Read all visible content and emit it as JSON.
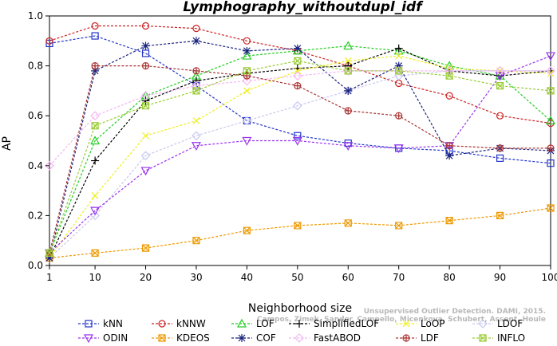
{
  "chart_data": {
    "type": "line",
    "title": "Lymphography_withoutdupl_idf",
    "xlabel": "Neighborhood size",
    "ylabel": "AP",
    "xlim": [
      1,
      100
    ],
    "ylim": [
      0,
      1.0
    ],
    "xticks": [
      1,
      10,
      20,
      30,
      40,
      50,
      60,
      70,
      80,
      90,
      100
    ],
    "yticks": [
      0.0,
      0.2,
      0.4,
      0.6,
      0.8,
      1.0
    ],
    "x": [
      1,
      10,
      20,
      30,
      40,
      50,
      60,
      70,
      80,
      90,
      100
    ],
    "legend_placement": "bottom",
    "series": [
      {
        "name": "kNN",
        "color": "#2233cc",
        "marker": "square",
        "values": [
          0.89,
          0.92,
          0.85,
          0.72,
          0.58,
          0.52,
          0.49,
          0.47,
          0.46,
          0.43,
          0.41
        ]
      },
      {
        "name": "kNNW",
        "color": "#cc2222",
        "marker": "circle",
        "values": [
          0.9,
          0.96,
          0.96,
          0.95,
          0.9,
          0.86,
          0.8,
          0.73,
          0.68,
          0.6,
          0.57
        ]
      },
      {
        "name": "LOF",
        "color": "#22cc22",
        "marker": "triangle-up",
        "values": [
          0.05,
          0.5,
          0.68,
          0.76,
          0.84,
          0.86,
          0.88,
          0.86,
          0.8,
          0.76,
          0.58
        ]
      },
      {
        "name": "SimplifiedLOF",
        "color": "#000000",
        "marker": "plus",
        "values": [
          0.03,
          0.42,
          0.66,
          0.74,
          0.77,
          0.79,
          0.8,
          0.87,
          0.78,
          0.76,
          0.78
        ]
      },
      {
        "name": "LoOP",
        "color": "#eeee22",
        "marker": "x",
        "values": [
          0.03,
          0.28,
          0.52,
          0.58,
          0.7,
          0.78,
          0.82,
          0.84,
          0.79,
          0.78,
          0.77
        ]
      },
      {
        "name": "LDOF",
        "color": "#c8c8f0",
        "marker": "diamond",
        "values": [
          0.03,
          0.2,
          0.44,
          0.52,
          0.58,
          0.64,
          0.7,
          0.76,
          0.78,
          0.78,
          0.78
        ]
      },
      {
        "name": "ODIN",
        "color": "#9933ee",
        "marker": "triangle-down",
        "values": [
          0.05,
          0.22,
          0.38,
          0.48,
          0.5,
          0.5,
          0.48,
          0.47,
          0.48,
          0.76,
          0.84
        ]
      },
      {
        "name": "KDEOS",
        "color": "#ee9900",
        "marker": "square-x",
        "values": [
          0.03,
          0.05,
          0.07,
          0.1,
          0.14,
          0.16,
          0.17,
          0.16,
          0.18,
          0.2,
          0.23
        ]
      },
      {
        "name": "COF",
        "color": "#1a237e",
        "marker": "asterisk",
        "values": [
          0.03,
          0.78,
          0.88,
          0.9,
          0.86,
          0.87,
          0.7,
          0.8,
          0.44,
          0.47,
          0.46
        ]
      },
      {
        "name": "FastABOD",
        "color": "#f4b6f4",
        "marker": "diamond",
        "values": [
          0.4,
          0.6,
          0.68,
          0.72,
          0.74,
          0.76,
          0.78,
          0.78,
          0.78,
          0.78,
          0.78
        ]
      },
      {
        "name": "LDF",
        "color": "#aa3333",
        "marker": "circle-plus",
        "values": [
          0.05,
          0.8,
          0.8,
          0.78,
          0.76,
          0.72,
          0.62,
          0.6,
          0.48,
          0.47,
          0.47
        ]
      },
      {
        "name": "INFLO",
        "color": "#99cc33",
        "marker": "square-x",
        "values": [
          0.05,
          0.56,
          0.64,
          0.7,
          0.78,
          0.82,
          0.78,
          0.78,
          0.76,
          0.72,
          0.7
        ]
      }
    ]
  },
  "watermark": "Unsupervised Outlier Detection. DAMI, 2015. Campos, Zimek, Sander, Campello, Micenkova, Schubert, Assent, Houle"
}
